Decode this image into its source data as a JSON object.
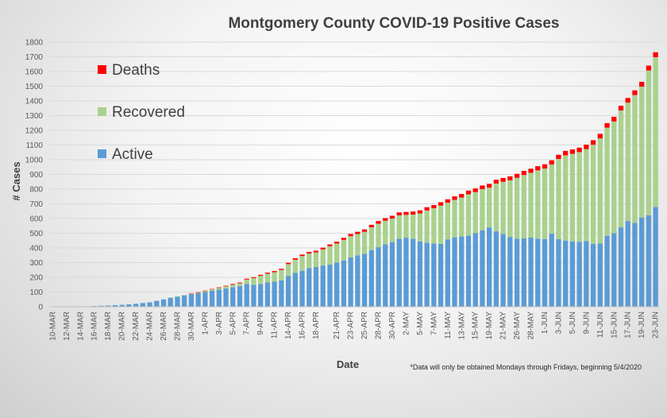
{
  "chart_data": {
    "type": "bar",
    "stacked": true,
    "title": "Montgomery County COVID-19 Positive Cases",
    "xlabel": "Date",
    "ylabel": "# Cases",
    "ylim": [
      0,
      1800
    ],
    "yticks": [
      0,
      100,
      200,
      300,
      400,
      500,
      600,
      700,
      800,
      900,
      1000,
      1100,
      1200,
      1300,
      1400,
      1500,
      1600,
      1700,
      1800
    ],
    "grid": true,
    "legend_position": "top-left",
    "footnote": "*Data will only be obtained Mondays through Fridays, beginning 5/4/2020",
    "categories": [
      "10-MAR",
      "11-MAR",
      "12-MAR",
      "13-MAR",
      "14-MAR",
      "15-MAR",
      "16-MAR",
      "17-MAR",
      "18-MAR",
      "19-MAR",
      "20-MAR",
      "21-MAR",
      "22-MAR",
      "23-MAR",
      "24-MAR",
      "25-MAR",
      "26-MAR",
      "27-MAR",
      "28-MAR",
      "29-MAR",
      "30-MAR",
      "31-MAR",
      "1-APR",
      "2-APR",
      "3-APR",
      "4-APR",
      "5-APR",
      "6-APR",
      "7-APR",
      "8-APR",
      "9-APR",
      "10-APR",
      "11-APR",
      "12-APR",
      "14-APR",
      "15-APR",
      "16-APR",
      "17-APR",
      "18-APR",
      "19-APR",
      "20-APR",
      "21-APR",
      "22-APR",
      "23-APR",
      "24-APR",
      "25-APR",
      "27-APR",
      "28-APR",
      "29-APR",
      "30-APR",
      "1-MAY",
      "2-MAY",
      "4-MAY",
      "5-MAY",
      "6-MAY",
      "7-MAY",
      "8-MAY",
      "11-MAY",
      "12-MAY",
      "13-MAY",
      "14-MAY",
      "15-MAY",
      "18-MAY",
      "19-MAY",
      "20-MAY",
      "21-MAY",
      "22-MAY",
      "26-MAY",
      "27-MAY",
      "28-MAY",
      "29-MAY",
      "1-JUN",
      "2-JUN",
      "3-JUN",
      "4-JUN",
      "5-JUN",
      "8-JUN",
      "9-JUN",
      "10-JUN",
      "11-JUN",
      "12-JUN",
      "15-JUN",
      "16-JUN",
      "17-JUN",
      "18-JUN",
      "19-JUN",
      "22-JUN",
      "23-JUN"
    ],
    "tick_labels": [
      "10-MAR",
      "12-MAR",
      "14-MAR",
      "16-MAR",
      "18-MAR",
      "20-MAR",
      "22-MAR",
      "24-MAR",
      "26-MAR",
      "28-MAR",
      "30-MAR",
      "1-APR",
      "3-APR",
      "5-APR",
      "7-APR",
      "9-APR",
      "11-APR",
      "14-APR",
      "16-APR",
      "18-APR",
      "21-APR",
      "23-APR",
      "25-APR",
      "28-APR",
      "30-APR",
      "2-MAY",
      "5-MAY",
      "7-MAY",
      "11-MAY",
      "13-MAY",
      "15-MAY",
      "19-MAY",
      "21-MAY",
      "26-MAY",
      "28-MAY",
      "1-JUN",
      "3-JUN",
      "5-JUN",
      "9-JUN",
      "11-JUN",
      "15-JUN",
      "17-JUN",
      "19-JUN",
      "23-JUN"
    ],
    "series": [
      {
        "name": "Active",
        "color": "#5b9bd5",
        "values": [
          1,
          1,
          2,
          2,
          3,
          3,
          5,
          6,
          8,
          11,
          13,
          16,
          20,
          25,
          30,
          40,
          50,
          62,
          70,
          78,
          85,
          92,
          100,
          108,
          116,
          124,
          132,
          140,
          155,
          150,
          155,
          165,
          170,
          180,
          210,
          230,
          245,
          262,
          270,
          280,
          287,
          300,
          315,
          335,
          350,
          360,
          385,
          405,
          425,
          440,
          462,
          470,
          462,
          445,
          435,
          430,
          428,
          458,
          472,
          478,
          485,
          500,
          520,
          540,
          513,
          495,
          475,
          462,
          466,
          471,
          463,
          460,
          497,
          460,
          450,
          445,
          442,
          447,
          427,
          430,
          483,
          500,
          540,
          583,
          570,
          607,
          622,
          678
        ]
      },
      {
        "name": "Recovered",
        "color": "#a9d18e",
        "values": [
          0,
          0,
          0,
          0,
          0,
          0,
          0,
          0,
          0,
          0,
          0,
          0,
          0,
          0,
          0,
          0,
          0,
          1,
          1,
          2,
          3,
          5,
          7,
          10,
          12,
          15,
          18,
          20,
          30,
          45,
          55,
          60,
          65,
          70,
          80,
          90,
          100,
          100,
          100,
          110,
          125,
          130,
          140,
          145,
          145,
          150,
          155,
          160,
          160,
          160,
          160,
          155,
          165,
          190,
          220,
          240,
          260,
          250,
          255,
          265,
          280,
          280,
          280,
          270,
          325,
          355,
          385,
          415,
          430,
          440,
          465,
          480,
          470,
          545,
          580,
          595,
          610,
          625,
          675,
          715,
          735,
          760,
          795,
          805,
          870,
          890,
          985,
          1020
        ]
      },
      {
        "name": "Deaths",
        "color": "#ff0000",
        "values": [
          0,
          0,
          0,
          0,
          0,
          0,
          0,
          0,
          0,
          0,
          0,
          0,
          0,
          0,
          0,
          0,
          0,
          0,
          0,
          0,
          2,
          2,
          3,
          3,
          4,
          4,
          5,
          5,
          6,
          6,
          7,
          7,
          8,
          8,
          9,
          10,
          10,
          11,
          11,
          12,
          12,
          13,
          14,
          15,
          15,
          16,
          17,
          18,
          18,
          19,
          20,
          20,
          21,
          21,
          22,
          22,
          23,
          23,
          24,
          24,
          25,
          25,
          25,
          26,
          26,
          26,
          27,
          27,
          28,
          28,
          28,
          29,
          29,
          29,
          30,
          30,
          30,
          31,
          31,
          31,
          31,
          32,
          32,
          32,
          32,
          33,
          33,
          33
        ]
      }
    ]
  }
}
